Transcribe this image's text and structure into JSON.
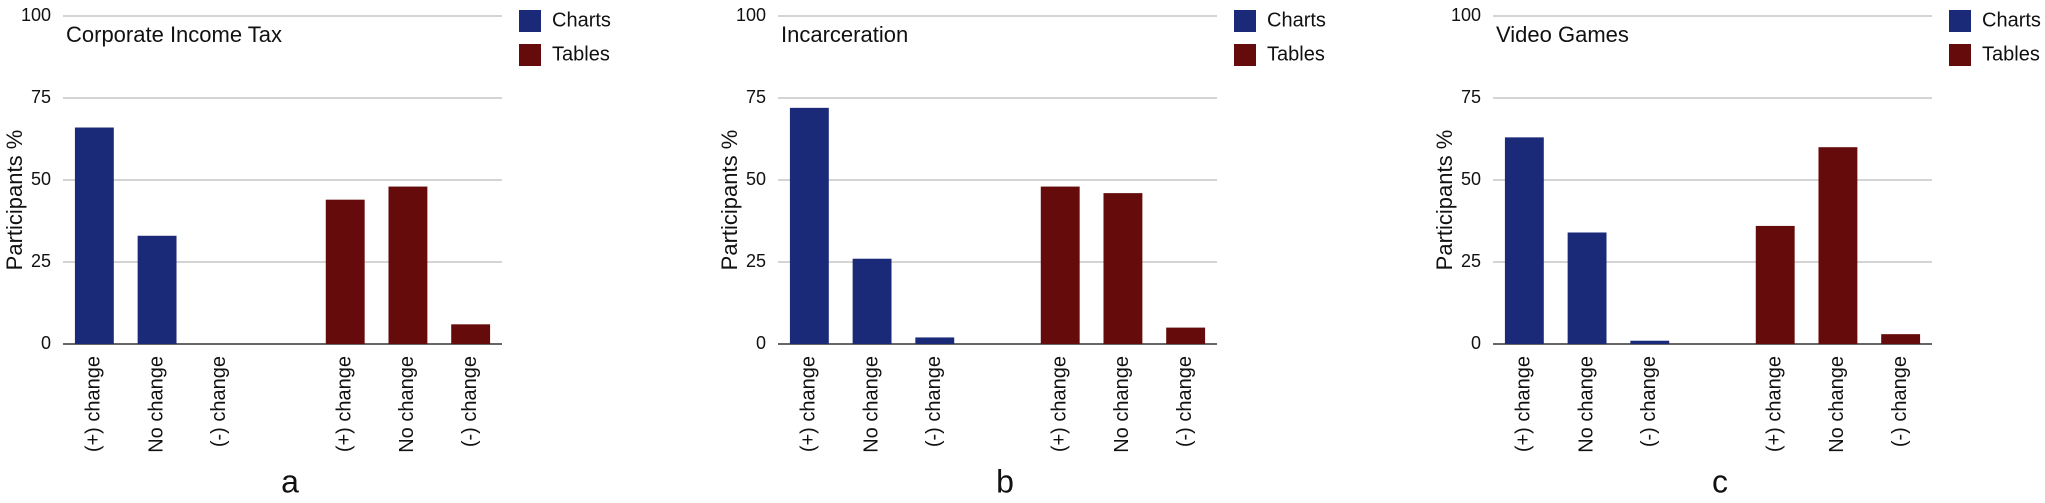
{
  "chart_data": [
    {
      "type": "bar",
      "title": "Corporate Income Tax",
      "label": "a",
      "ylabel": "Participants %",
      "categories": [
        "(+) change",
        "No change",
        "(-) change",
        null,
        "(+) change",
        "No change",
        "(-) change"
      ],
      "series": [
        {
          "name": "Charts",
          "color": "#1b2a78",
          "values": [
            66,
            33,
            0,
            null,
            null,
            null,
            null
          ]
        },
        {
          "name": "Tables",
          "color": "#650b0b",
          "values": [
            null,
            null,
            null,
            null,
            44,
            48,
            6
          ]
        }
      ],
      "ylim": [
        0,
        100
      ],
      "yticks": [
        0,
        25,
        50,
        75,
        100
      ],
      "grid": true
    },
    {
      "type": "bar",
      "title": "Incarceration",
      "label": "b",
      "ylabel": "Participants %",
      "categories": [
        "(+) change",
        "No change",
        "(-) change",
        null,
        "(+) change",
        "No change",
        "(-) change"
      ],
      "series": [
        {
          "name": "Charts",
          "color": "#1b2a78",
          "values": [
            72,
            26,
            2,
            null,
            null,
            null,
            null
          ]
        },
        {
          "name": "Tables",
          "color": "#650b0b",
          "values": [
            null,
            null,
            null,
            null,
            48,
            46,
            5
          ]
        }
      ],
      "ylim": [
        0,
        100
      ],
      "yticks": [
        0,
        25,
        50,
        75,
        100
      ],
      "grid": true
    },
    {
      "type": "bar",
      "title": "Video Games",
      "label": "c",
      "ylabel": "Participants %",
      "categories": [
        "(+) change",
        "No change",
        "(-) change",
        null,
        "(+) change",
        "No change",
        "(-) change"
      ],
      "series": [
        {
          "name": "Charts",
          "color": "#1b2a78",
          "values": [
            63,
            34,
            1,
            null,
            null,
            null,
            null
          ]
        },
        {
          "name": "Tables",
          "color": "#650b0b",
          "values": [
            null,
            null,
            null,
            null,
            36,
            60,
            3
          ]
        }
      ],
      "ylim": [
        0,
        100
      ],
      "yticks": [
        0,
        25,
        50,
        75,
        100
      ],
      "grid": true
    }
  ]
}
